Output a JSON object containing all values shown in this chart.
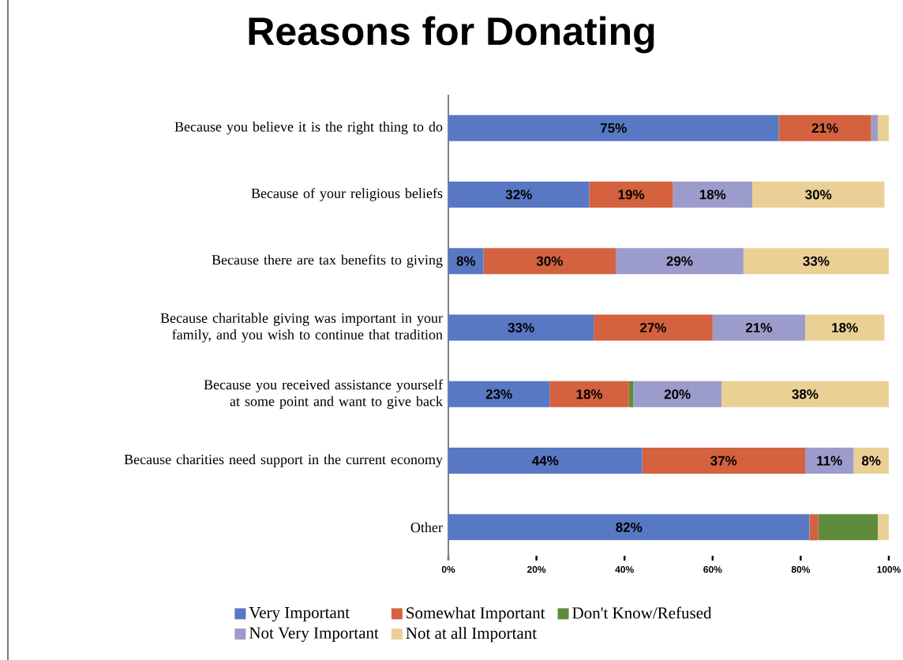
{
  "chart_data": {
    "type": "bar",
    "orientation": "horizontal",
    "stacked": true,
    "title": "Reasons for Donating",
    "categories": [
      "Because you believe it is the right thing to do",
      "Because of your religious beliefs",
      "Because there are tax benefits to giving",
      "Because charitable giving was important in your family, and you wish to continue that tradition",
      "Because you received assistance yourself at some point and want to give back",
      "Because charities need support in the current economy",
      "Other"
    ],
    "series": [
      {
        "name": "Very Important",
        "color": "#5878c4",
        "values": [
          75,
          32,
          8,
          33,
          23,
          44,
          82
        ],
        "value_labels": [
          "75%",
          "32%",
          "8%",
          "33%",
          "23%",
          "44%",
          "82%"
        ]
      },
      {
        "name": "Somewhat Important",
        "color": "#d4623e",
        "values": [
          21,
          19,
          30,
          27,
          18,
          37,
          2
        ],
        "value_labels": [
          "21%",
          "19%",
          "30%",
          "27%",
          "18%",
          "37%",
          null
        ]
      },
      {
        "name": "Don't Know/Refused",
        "color": "#5f8c3c",
        "values": [
          0,
          0,
          0,
          0,
          1,
          0,
          13.5
        ],
        "value_labels": [
          null,
          null,
          null,
          null,
          null,
          null,
          null
        ]
      },
      {
        "name": "Not Very Important",
        "color": "#9c9ccc",
        "values": [
          1.5,
          18,
          29,
          21,
          20,
          11,
          0
        ],
        "value_labels": [
          null,
          "18%",
          "29%",
          "21%",
          "20%",
          "11%",
          null
        ]
      },
      {
        "name": "Not at all Important",
        "color": "#ebd096",
        "values": [
          2.5,
          30,
          33,
          18,
          38,
          8,
          2.5
        ],
        "value_labels": [
          null,
          "30%",
          "33%",
          "18%",
          "38%",
          "8%",
          null
        ]
      }
    ],
    "xlim": [
      0,
      100
    ],
    "xticks": [
      {
        "value": 0,
        "label": "0%"
      },
      {
        "value": 20,
        "label": "20%"
      },
      {
        "value": 40,
        "label": "40%"
      },
      {
        "value": 60,
        "label": "60%"
      },
      {
        "value": 80,
        "label": "80%"
      },
      {
        "value": 100,
        "label": "100%"
      }
    ],
    "legend": "bottom",
    "grid": false
  }
}
